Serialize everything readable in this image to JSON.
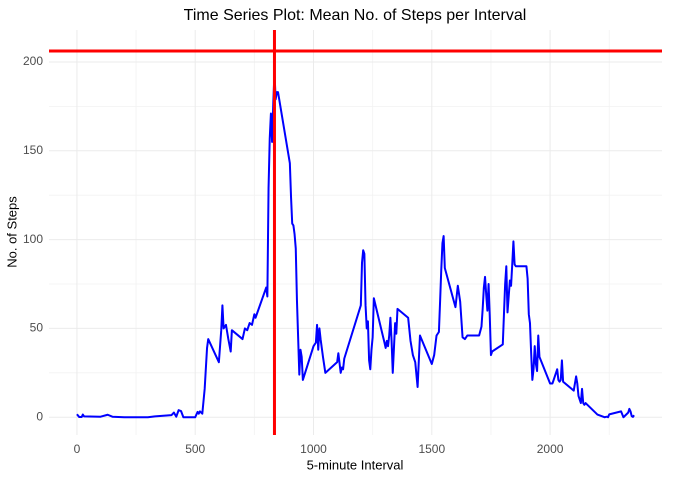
{
  "chart_data": {
    "type": "line",
    "title": "Time Series Plot: Mean No. of Steps per Interval",
    "x_label": "5-minute Interval",
    "y_label": "No. of Steps",
    "x": [
      0,
      10,
      20,
      25,
      30,
      100,
      130,
      150,
      200,
      300,
      330,
      400,
      410,
      420,
      430,
      440,
      450,
      500,
      510,
      515,
      520,
      530,
      540,
      550,
      555,
      600,
      610,
      615,
      620,
      630,
      640,
      650,
      655,
      700,
      710,
      720,
      730,
      740,
      750,
      755,
      800,
      805,
      810,
      815,
      820,
      825,
      830,
      835,
      840,
      845,
      850,
      900,
      905,
      910,
      915,
      920,
      925,
      930,
      935,
      940,
      945,
      950,
      955,
      1000,
      1010,
      1015,
      1020,
      1025,
      1030,
      1040,
      1050,
      1100,
      1105,
      1115,
      1120,
      1125,
      1130,
      1200,
      1205,
      1210,
      1215,
      1220,
      1225,
      1230,
      1235,
      1240,
      1245,
      1250,
      1255,
      1300,
      1305,
      1310,
      1315,
      1320,
      1325,
      1330,
      1335,
      1340,
      1345,
      1350,
      1355,
      1400,
      1410,
      1420,
      1430,
      1440,
      1450,
      1500,
      1510,
      1520,
      1525,
      1530,
      1535,
      1540,
      1545,
      1550,
      1555,
      1600,
      1610,
      1620,
      1630,
      1640,
      1650,
      1700,
      1710,
      1715,
      1720,
      1725,
      1730,
      1735,
      1740,
      1745,
      1750,
      1755,
      1800,
      1805,
      1810,
      1815,
      1820,
      1825,
      1830,
      1835,
      1840,
      1845,
      1850,
      1855,
      1900,
      1905,
      1910,
      1915,
      1920,
      1925,
      1930,
      1935,
      1940,
      1945,
      1950,
      1955,
      2000,
      2010,
      2030,
      2035,
      2040,
      2045,
      2050,
      2055,
      2100,
      2110,
      2115,
      2120,
      2130,
      2135,
      2140,
      2145,
      2150,
      2200,
      2230,
      2240,
      2245,
      2250,
      2300,
      2310,
      2330,
      2335,
      2340,
      2345,
      2350,
      2355
    ],
    "values": [
      1.7,
      0.1,
      0.1,
      1.5,
      0.5,
      0.3,
      1.4,
      0.3,
      0,
      0,
      0.5,
      1.2,
      2.6,
      0.3,
      4,
      3.5,
      0,
      0,
      3,
      2,
      3.3,
      2,
      16,
      39,
      44,
      31,
      49,
      63,
      50,
      52,
      44,
      37,
      49,
      44,
      50,
      49,
      53,
      52,
      58,
      56,
      73,
      68,
      129,
      157,
      171,
      155,
      177,
      194,
      179,
      183,
      183,
      143,
      124,
      109,
      108,
      103,
      95,
      66,
      45,
      24,
      38,
      34,
      21,
      40,
      42,
      52,
      38,
      50,
      44,
      34,
      25,
      31,
      36,
      25,
      28,
      27,
      33,
      63,
      87,
      94,
      92,
      63,
      50,
      54,
      32,
      27,
      38,
      45,
      67,
      42,
      39,
      43,
      40,
      46,
      56,
      43,
      25,
      39,
      53,
      47,
      61,
      56,
      43,
      35,
      31,
      17,
      46,
      30,
      35,
      46,
      47,
      48,
      65,
      83,
      98,
      102,
      84,
      62,
      74,
      65,
      45,
      44,
      46,
      46,
      51,
      61,
      73,
      79,
      69,
      60,
      75,
      57,
      35,
      37,
      41,
      58,
      75,
      85,
      59,
      68,
      77,
      74,
      86,
      99,
      86,
      85,
      85,
      78,
      58,
      53,
      36,
      21,
      27,
      40,
      30,
      26,
      46,
      34,
      19,
      19,
      27,
      21,
      20,
      21,
      32,
      20,
      15,
      23,
      19,
      12,
      8,
      16,
      8,
      7,
      8,
      1.5,
      0,
      0.3,
      0,
      1.6,
      3.3,
      0,
      2.6,
      4.7,
      3.3,
      0.6,
      0.2,
      1.1
    ],
    "color": "#0000ff",
    "hline": 206.17,
    "vline": 835,
    "ref_color": "#ff0000",
    "xlim": [
      -118,
      2473
    ],
    "xticks": [
      0,
      500,
      1000,
      1500,
      2000
    ],
    "minor_xticks": [
      250,
      750,
      1250,
      1750,
      2250
    ],
    "ylim": [
      -10,
      218
    ],
    "yticks": [
      0,
      50,
      100,
      150,
      200
    ],
    "minor_yticks": [
      25,
      75,
      125,
      175
    ],
    "grid": true
  }
}
